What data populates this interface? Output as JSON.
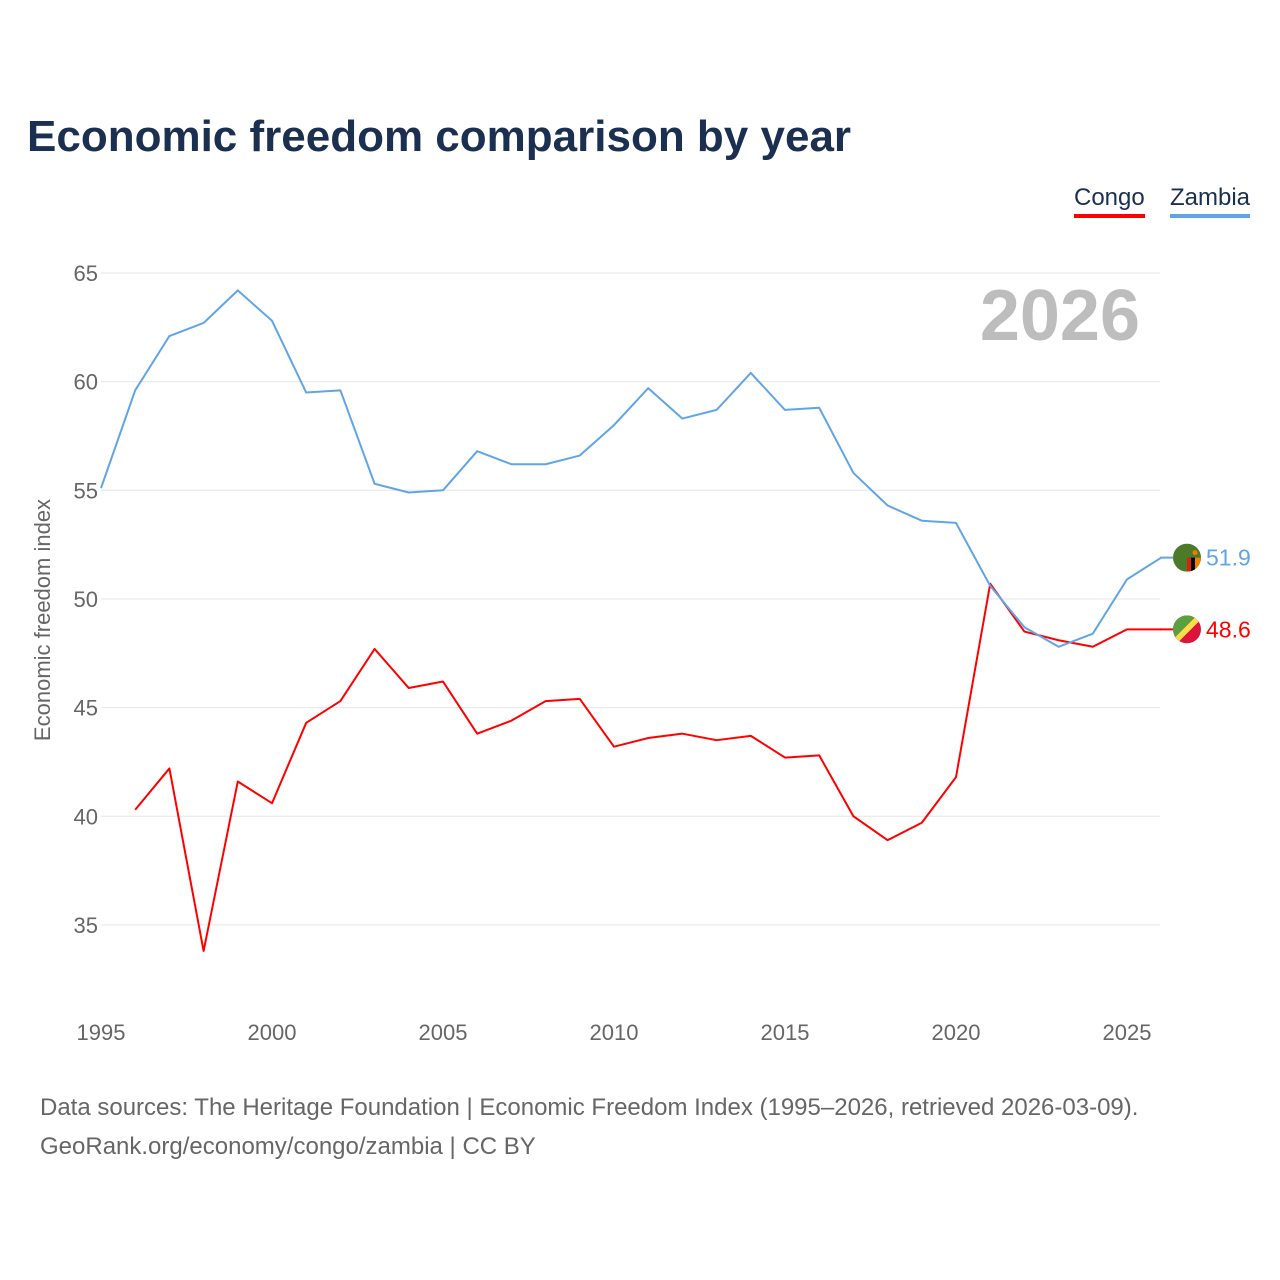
{
  "title": "Economic freedom comparison by year",
  "legend": [
    "Congo",
    "Zambia"
  ],
  "year_overlay": "2026",
  "footer": [
    "Data sources: The Heritage Foundation | Economic Freedom Index (1995–2026, retrieved 2026-03-09).",
    "GeoRank.org/economy/congo/zambia | CC BY"
  ],
  "chart_data": {
    "type": "line",
    "title": "Economic freedom comparison by year",
    "xlabel": "",
    "ylabel": "Economic freedom index",
    "xlim": [
      1995,
      2026
    ],
    "ylim": [
      32,
      66
    ],
    "xticks": [
      1995,
      2000,
      2005,
      2010,
      2015,
      2020,
      2025
    ],
    "yticks": [
      35,
      40,
      45,
      50,
      55,
      60,
      65
    ],
    "grid": true,
    "legend_position": "top-right",
    "series": [
      {
        "name": "Congo",
        "color": "#ff0000",
        "end_label": "48.6",
        "x": [
          1996,
          1997,
          1998,
          1999,
          2000,
          2001,
          2002,
          2003,
          2004,
          2005,
          2006,
          2007,
          2008,
          2009,
          2010,
          2011,
          2012,
          2013,
          2014,
          2015,
          2016,
          2017,
          2018,
          2019,
          2020,
          2021,
          2022,
          2023,
          2024,
          2025,
          2026
        ],
        "values": [
          40.3,
          42.2,
          33.8,
          41.6,
          40.6,
          44.3,
          45.3,
          47.7,
          45.9,
          46.2,
          43.8,
          44.4,
          45.3,
          45.4,
          43.2,
          43.6,
          43.8,
          43.5,
          43.7,
          42.7,
          42.8,
          40.0,
          38.9,
          39.7,
          41.8,
          50.7,
          48.5,
          48.1,
          47.8,
          48.6,
          48.6
        ]
      },
      {
        "name": "Zambia",
        "color": "#60a5e8",
        "end_label": "51.9",
        "x": [
          1995,
          1996,
          1997,
          1998,
          1999,
          2000,
          2001,
          2002,
          2003,
          2004,
          2005,
          2006,
          2007,
          2008,
          2009,
          2010,
          2011,
          2012,
          2013,
          2014,
          2015,
          2016,
          2017,
          2018,
          2019,
          2020,
          2021,
          2022,
          2023,
          2024,
          2025,
          2026
        ],
        "values": [
          55.1,
          59.6,
          62.1,
          62.7,
          64.2,
          62.8,
          59.5,
          59.6,
          55.3,
          54.9,
          55.0,
          56.8,
          56.2,
          56.2,
          56.6,
          58.0,
          59.7,
          58.3,
          58.7,
          60.4,
          58.7,
          58.8,
          55.8,
          54.3,
          53.6,
          53.5,
          50.6,
          48.7,
          47.8,
          48.4,
          50.9,
          51.9
        ]
      }
    ]
  }
}
